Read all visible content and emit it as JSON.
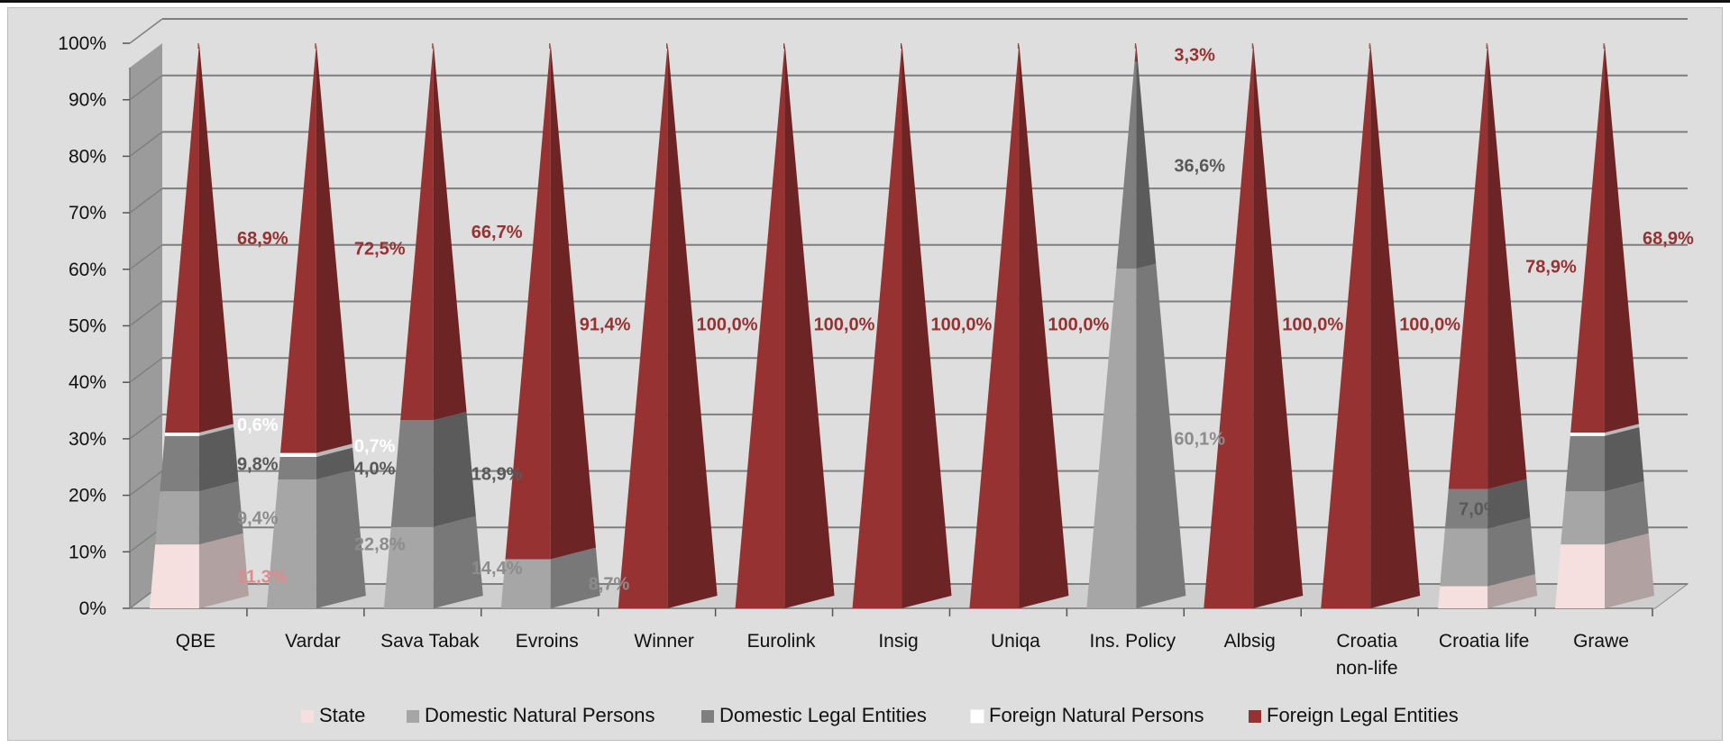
{
  "chart_data": {
    "type": "bar",
    "subtype": "stacked-100-percent-3d-pyramid",
    "title": "",
    "xlabel": "",
    "ylabel": "",
    "ylim": [
      0,
      100
    ],
    "yticks": [
      "0%",
      "10%",
      "20%",
      "30%",
      "40%",
      "50%",
      "60%",
      "70%",
      "80%",
      "90%",
      "100%"
    ],
    "grid": true,
    "legend_position": "bottom",
    "categories": [
      "QBE",
      "Vardar",
      "Sava Tabak",
      "Evroins",
      "Winner",
      "Eurolink",
      "Insig",
      "Uniqa",
      "Ins. Policy",
      "Albsig",
      "Croatia non-life",
      "Croatia life",
      "Grawe"
    ],
    "category_lines": [
      [
        "QBE"
      ],
      [
        "Vardar"
      ],
      [
        "Sava Tabak"
      ],
      [
        "Evroins"
      ],
      [
        "Winner"
      ],
      [
        "Eurolink"
      ],
      [
        "Insig"
      ],
      [
        "Uniqa"
      ],
      [
        "Ins. Policy"
      ],
      [
        "Albsig"
      ],
      [
        "Croatia",
        "non-life"
      ],
      [
        "Croatia life"
      ],
      [
        "Grawe"
      ]
    ],
    "series": [
      {
        "name": "State",
        "color": "#f6dfdf",
        "label_color": "#e08a8a",
        "values": [
          11.3,
          0,
          0,
          0,
          0,
          0,
          0,
          0,
          0,
          0,
          0,
          3.9,
          11.3
        ],
        "labels": [
          "11,3%",
          "",
          "",
          "",
          "",
          "",
          "",
          "",
          "",
          "",
          "",
          "",
          ""
        ]
      },
      {
        "name": "Domestic Natural Persons",
        "color": "#a6a6a6",
        "label_color": "#8c8c8c",
        "values": [
          9.4,
          22.8,
          14.4,
          8.7,
          0,
          0,
          0,
          0,
          60.1,
          0,
          0,
          10.2,
          9.4
        ],
        "labels": [
          "9,4%",
          "22,8%",
          "14,4%",
          "8,7%",
          "",
          "",
          "",
          "",
          "60,1%",
          "",
          "",
          "",
          ""
        ]
      },
      {
        "name": "Domestic Legal Entities",
        "color": "#7f7f7f",
        "label_color": "#595959",
        "values": [
          9.8,
          4.0,
          18.9,
          0,
          0,
          0,
          0,
          0,
          36.6,
          0,
          0,
          7.0,
          9.8
        ],
        "labels": [
          "9,8%",
          "4,0%",
          "18,9%",
          "",
          "",
          "",
          "",
          "",
          "36,6%",
          "",
          "",
          "7,0%",
          ""
        ]
      },
      {
        "name": "Foreign Natural Persons",
        "color": "#ffffff",
        "label_color": "#ffffff",
        "values": [
          0.6,
          0.7,
          0,
          0,
          0,
          0,
          0,
          0,
          0,
          0,
          0,
          0,
          0.6
        ],
        "labels": [
          "0,6%",
          "0,7%",
          "",
          "",
          "",
          "",
          "",
          "",
          "",
          "",
          "",
          "",
          ""
        ]
      },
      {
        "name": "Foreign Legal Entities",
        "color": "#973232",
        "label_color": "#973232",
        "values": [
          68.9,
          72.5,
          66.7,
          91.4,
          100.0,
          100.0,
          100.0,
          100.0,
          3.3,
          100.0,
          100.0,
          78.9,
          68.9
        ],
        "labels": [
          "68,9%",
          "72,5%",
          "66,7%",
          "91,4%",
          "100,0%",
          "100,0%",
          "100,0%",
          "100,0%",
          "3,3%",
          "100,0%",
          "100,0%",
          "78,9%",
          "68,9%"
        ]
      }
    ]
  }
}
